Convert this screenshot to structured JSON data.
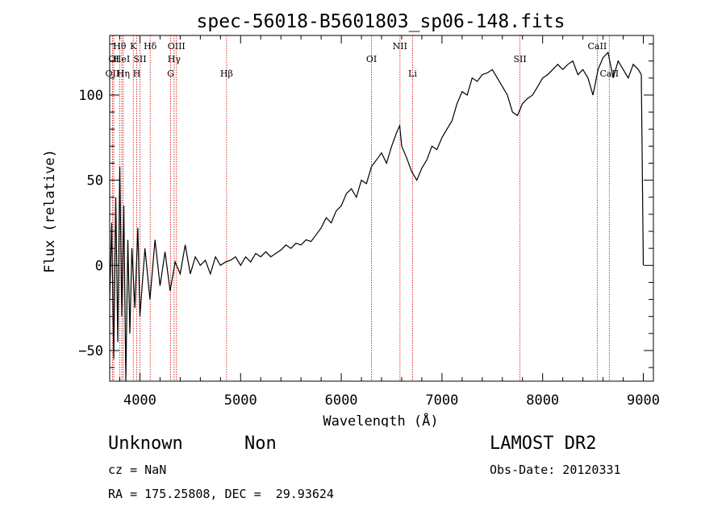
{
  "chart_data": {
    "type": "line",
    "title": "spec-56018-B5601803_sp06-148.fits",
    "xlabel": "Wavelength (Å)",
    "ylabel": "Flux (relative)",
    "xlim": [
      3700,
      9100
    ],
    "ylim": [
      -68,
      135
    ],
    "xticks": [
      4000,
      5000,
      6000,
      7000,
      8000,
      9000
    ],
    "yticks": [
      -50,
      0,
      50,
      100
    ],
    "grid": false,
    "line_color": "#000000",
    "marker_color": "#cc0000",
    "series": [
      {
        "values": [
          [
            3700,
            -20
          ],
          [
            3720,
            25
          ],
          [
            3740,
            -55
          ],
          [
            3760,
            40
          ],
          [
            3780,
            -45
          ],
          [
            3800,
            58
          ],
          [
            3820,
            -30
          ],
          [
            3840,
            35
          ],
          [
            3860,
            -68
          ],
          [
            3880,
            15
          ],
          [
            3900,
            -40
          ],
          [
            3920,
            10
          ],
          [
            3950,
            -25
          ],
          [
            3980,
            22
          ],
          [
            4000,
            -30
          ],
          [
            4050,
            10
          ],
          [
            4100,
            -20
          ],
          [
            4150,
            15
          ],
          [
            4200,
            -12
          ],
          [
            4250,
            8
          ],
          [
            4300,
            -15
          ],
          [
            4350,
            2
          ],
          [
            4400,
            -5
          ],
          [
            4450,
            12
          ],
          [
            4500,
            -5
          ],
          [
            4550,
            5
          ],
          [
            4600,
            0
          ],
          [
            4650,
            3
          ],
          [
            4700,
            -5
          ],
          [
            4750,
            5
          ],
          [
            4800,
            0
          ],
          [
            4850,
            2
          ],
          [
            4900,
            3
          ],
          [
            4950,
            5
          ],
          [
            5000,
            0
          ],
          [
            5050,
            5
          ],
          [
            5100,
            2
          ],
          [
            5150,
            7
          ],
          [
            5200,
            5
          ],
          [
            5250,
            8
          ],
          [
            5300,
            5
          ],
          [
            5350,
            7
          ],
          [
            5400,
            9
          ],
          [
            5450,
            12
          ],
          [
            5500,
            10
          ],
          [
            5550,
            13
          ],
          [
            5600,
            12
          ],
          [
            5650,
            15
          ],
          [
            5700,
            14
          ],
          [
            5750,
            18
          ],
          [
            5800,
            22
          ],
          [
            5850,
            28
          ],
          [
            5900,
            25
          ],
          [
            5950,
            32
          ],
          [
            6000,
            35
          ],
          [
            6050,
            42
          ],
          [
            6100,
            45
          ],
          [
            6150,
            40
          ],
          [
            6200,
            50
          ],
          [
            6250,
            48
          ],
          [
            6300,
            58
          ],
          [
            6350,
            62
          ],
          [
            6400,
            66
          ],
          [
            6450,
            60
          ],
          [
            6500,
            70
          ],
          [
            6550,
            78
          ],
          [
            6580,
            82
          ],
          [
            6600,
            70
          ],
          [
            6650,
            63
          ],
          [
            6700,
            55
          ],
          [
            6750,
            50
          ],
          [
            6800,
            57
          ],
          [
            6850,
            62
          ],
          [
            6900,
            70
          ],
          [
            6950,
            68
          ],
          [
            7000,
            75
          ],
          [
            7050,
            80
          ],
          [
            7100,
            85
          ],
          [
            7150,
            95
          ],
          [
            7200,
            102
          ],
          [
            7250,
            100
          ],
          [
            7300,
            110
          ],
          [
            7350,
            108
          ],
          [
            7400,
            112
          ],
          [
            7450,
            113
          ],
          [
            7500,
            115
          ],
          [
            7550,
            110
          ],
          [
            7600,
            105
          ],
          [
            7650,
            100
          ],
          [
            7700,
            90
          ],
          [
            7750,
            88
          ],
          [
            7800,
            95
          ],
          [
            7850,
            98
          ],
          [
            7900,
            100
          ],
          [
            7950,
            105
          ],
          [
            8000,
            110
          ],
          [
            8050,
            112
          ],
          [
            8100,
            115
          ],
          [
            8150,
            118
          ],
          [
            8200,
            115
          ],
          [
            8250,
            118
          ],
          [
            8300,
            120
          ],
          [
            8350,
            112
          ],
          [
            8400,
            115
          ],
          [
            8450,
            110
          ],
          [
            8500,
            100
          ],
          [
            8550,
            115
          ],
          [
            8600,
            122
          ],
          [
            8650,
            125
          ],
          [
            8700,
            110
          ],
          [
            8750,
            120
          ],
          [
            8800,
            115
          ],
          [
            8850,
            110
          ],
          [
            8900,
            118
          ],
          [
            8950,
            115
          ],
          [
            8980,
            112
          ],
          [
            9000,
            0
          ]
        ]
      }
    ],
    "lines": [
      {
        "label": "Hθ",
        "x": 3798,
        "row": 1
      },
      {
        "label": "OII",
        "x": 3727,
        "row": 3
      },
      {
        "label": "OI",
        "x": 3740,
        "row": 2
      },
      {
        "label": "HeI",
        "x": 3820,
        "row": 2
      },
      {
        "label": "Hη",
        "x": 3835,
        "row": 3
      },
      {
        "label": "K",
        "x": 3934,
        "row": 1
      },
      {
        "label": "SII",
        "x": 4000,
        "row": 2
      },
      {
        "label": "H",
        "x": 3969,
        "row": 3
      },
      {
        "label": "Hδ",
        "x": 4102,
        "row": 1
      },
      {
        "label": "OIII",
        "x": 4363,
        "row": 1
      },
      {
        "label": "Hγ",
        "x": 4340,
        "row": 2
      },
      {
        "label": "G",
        "x": 4305,
        "row": 3
      },
      {
        "label": "Hβ",
        "x": 4861,
        "row": 3
      },
      {
        "label": "OI",
        "x": 6300,
        "row": 2
      },
      {
        "label": "NII",
        "x": 6583,
        "row": 1
      },
      {
        "label": "Li",
        "x": 6708,
        "row": 3
      },
      {
        "label": "SII",
        "x": 7775,
        "row": 2
      },
      {
        "label": "CaII",
        "x": 8542,
        "row": 1
      },
      {
        "label": "CaII",
        "x": 8662,
        "row": 3
      }
    ]
  },
  "footer": {
    "object_class": "Unknown",
    "subclass": "Non",
    "survey": "LAMOST DR2",
    "cz": "cz = NaN",
    "obs_date": "Obs-Date: 20120331",
    "coords": "RA = 175.25808, DEC =  29.93624"
  }
}
